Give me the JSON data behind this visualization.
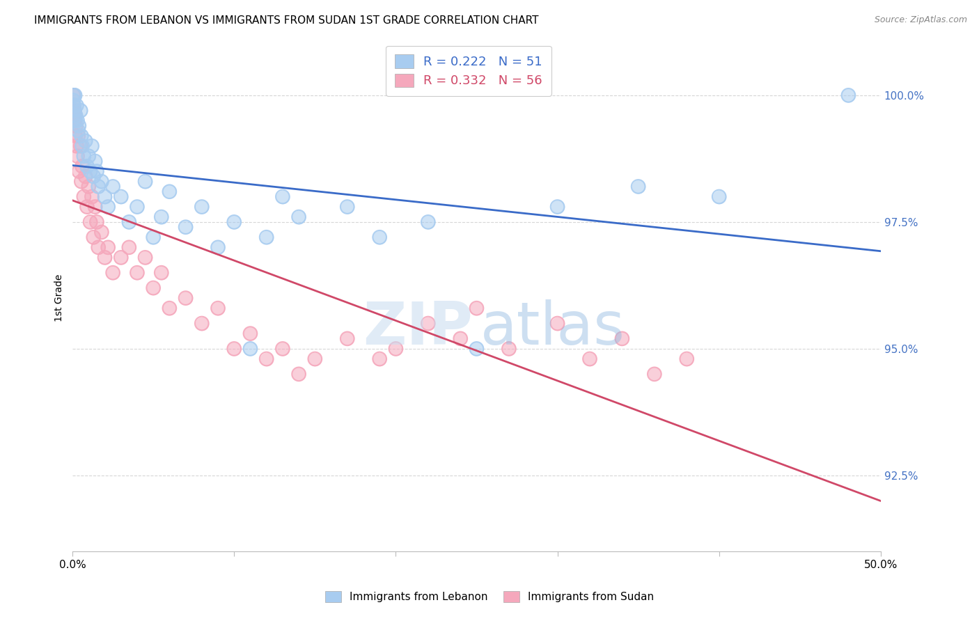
{
  "title": "IMMIGRANTS FROM LEBANON VS IMMIGRANTS FROM SUDAN 1ST GRADE CORRELATION CHART",
  "source": "Source: ZipAtlas.com",
  "ylabel": "1st Grade",
  "y_ticks": [
    92.5,
    95.0,
    97.5,
    100.0
  ],
  "y_tick_labels": [
    "92.5%",
    "95.0%",
    "97.5%",
    "100.0%"
  ],
  "xlim": [
    0.0,
    50.0
  ],
  "ylim": [
    91.0,
    101.0
  ],
  "legend_label1": "Immigrants from Lebanon",
  "legend_label2": "Immigrants from Sudan",
  "R_lebanon": 0.222,
  "N_lebanon": 51,
  "R_sudan": 0.332,
  "N_sudan": 56,
  "color_lebanon": "#A8CCF0",
  "color_sudan": "#F5A8BC",
  "trendline_color_lebanon": "#3A6BC8",
  "trendline_color_sudan": "#D04868",
  "right_tick_color": "#4472C4",
  "background_color": "#FFFFFF",
  "grid_color": "#CCCCCC",
  "title_fontsize": 11,
  "source_fontsize": 9,
  "axis_label_fontsize": 10,
  "tick_fontsize": 11,
  "watermark_zip_color": "#C8DCF0",
  "watermark_atlas_color": "#90B8E0",
  "lebanon_x": [
    0.05,
    0.08,
    0.1,
    0.12,
    0.15,
    0.18,
    0.2,
    0.25,
    0.3,
    0.35,
    0.4,
    0.5,
    0.55,
    0.6,
    0.7,
    0.8,
    0.9,
    1.0,
    1.1,
    1.2,
    1.3,
    1.4,
    1.5,
    1.6,
    1.8,
    2.0,
    2.2,
    2.5,
    3.0,
    3.5,
    4.0,
    4.5,
    5.0,
    5.5,
    6.0,
    7.0,
    8.0,
    9.0,
    10.0,
    11.0,
    12.0,
    13.0,
    14.0,
    17.0,
    19.0,
    22.0,
    25.0,
    30.0,
    35.0,
    40.0,
    48.0
  ],
  "lebanon_y": [
    99.9,
    100.0,
    99.8,
    99.7,
    100.0,
    99.5,
    99.6,
    99.8,
    99.5,
    99.3,
    99.4,
    99.7,
    99.2,
    99.0,
    98.8,
    99.1,
    98.6,
    98.8,
    98.5,
    99.0,
    98.4,
    98.7,
    98.5,
    98.2,
    98.3,
    98.0,
    97.8,
    98.2,
    98.0,
    97.5,
    97.8,
    98.3,
    97.2,
    97.6,
    98.1,
    97.4,
    97.8,
    97.0,
    97.5,
    95.0,
    97.2,
    98.0,
    97.6,
    97.8,
    97.2,
    97.5,
    95.0,
    97.8,
    98.2,
    98.0,
    100.0
  ],
  "sudan_x": [
    0.05,
    0.08,
    0.1,
    0.12,
    0.15,
    0.18,
    0.2,
    0.25,
    0.3,
    0.35,
    0.4,
    0.5,
    0.55,
    0.6,
    0.7,
    0.8,
    0.9,
    1.0,
    1.1,
    1.2,
    1.3,
    1.4,
    1.5,
    1.6,
    1.8,
    2.0,
    2.2,
    2.5,
    3.0,
    3.5,
    4.0,
    4.5,
    5.0,
    5.5,
    6.0,
    7.0,
    8.0,
    9.0,
    10.0,
    11.0,
    12.0,
    13.0,
    14.0,
    15.0,
    17.0,
    19.0,
    20.0,
    22.0,
    24.0,
    25.0,
    27.0,
    30.0,
    32.0,
    34.0,
    36.0,
    38.0
  ],
  "sudan_y": [
    100.0,
    99.8,
    99.5,
    99.7,
    99.6,
    99.2,
    99.4,
    99.0,
    98.8,
    99.2,
    98.5,
    99.0,
    98.3,
    98.6,
    98.0,
    98.4,
    97.8,
    98.2,
    97.5,
    98.0,
    97.2,
    97.8,
    97.5,
    97.0,
    97.3,
    96.8,
    97.0,
    96.5,
    96.8,
    97.0,
    96.5,
    96.8,
    96.2,
    96.5,
    95.8,
    96.0,
    95.5,
    95.8,
    95.0,
    95.3,
    94.8,
    95.0,
    94.5,
    94.8,
    95.2,
    94.8,
    95.0,
    95.5,
    95.2,
    95.8,
    95.0,
    95.5,
    94.8,
    95.2,
    94.5,
    94.8
  ]
}
